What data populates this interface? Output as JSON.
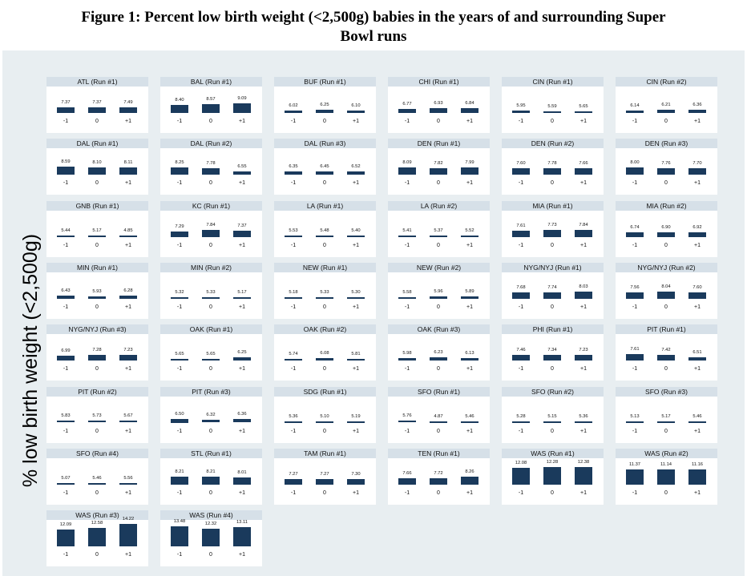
{
  "figure": {
    "title_line1": "Figure 1: Percent low birth weight (<2,500g) babies in the years of and surrounding Super",
    "title_line2": "Bowl runs",
    "ylabel": "% low birth weight (<2,500g)"
  },
  "colors": {
    "bar": "#1a3a5c",
    "strip": "#d6e0e8",
    "background": "#e8eef1"
  },
  "chart_data": {
    "type": "bar",
    "title": "Figure 1: Percent low birth weight (<2,500g) babies in the years of and surrounding Super Bowl runs",
    "ylabel": "% low birth weight (<2,500g)",
    "categories": [
      "-1",
      "0",
      "+1"
    ],
    "ylim": [
      5,
      15
    ],
    "layout": "small-multiples",
    "panels": [
      {
        "label": "ATL (Run #1)",
        "values": [
          7.37,
          7.37,
          7.49
        ]
      },
      {
        "label": "BAL (Run #1)",
        "values": [
          8.4,
          8.57,
          9.09
        ]
      },
      {
        "label": "BUF (Run #1)",
        "values": [
          6.02,
          6.25,
          6.1
        ]
      },
      {
        "label": "CHI (Run #1)",
        "values": [
          6.77,
          6.93,
          6.84
        ]
      },
      {
        "label": "CIN (Run #1)",
        "values": [
          5.95,
          5.59,
          5.65
        ]
      },
      {
        "label": "CIN (Run #2)",
        "values": [
          6.14,
          6.21,
          6.36
        ]
      },
      {
        "label": "DAL (Run #1)",
        "values": [
          8.59,
          8.1,
          8.11
        ]
      },
      {
        "label": "DAL (Run #2)",
        "values": [
          8.25,
          7.78,
          6.55
        ]
      },
      {
        "label": "DAL (Run #3)",
        "values": [
          6.35,
          6.45,
          6.52
        ]
      },
      {
        "label": "DEN (Run #1)",
        "values": [
          8.09,
          7.82,
          7.99
        ]
      },
      {
        "label": "DEN (Run #2)",
        "values": [
          7.6,
          7.78,
          7.66
        ]
      },
      {
        "label": "DEN (Run #3)",
        "values": [
          8.0,
          7.76,
          7.7
        ]
      },
      {
        "label": "GNB (Run #1)",
        "values": [
          5.44,
          5.17,
          4.85
        ]
      },
      {
        "label": "KC (Run #1)",
        "values": [
          7.29,
          7.84,
          7.37
        ]
      },
      {
        "label": "LA (Run #1)",
        "values": [
          5.53,
          5.48,
          5.4
        ]
      },
      {
        "label": "LA (Run #2)",
        "values": [
          5.41,
          5.37,
          5.52
        ]
      },
      {
        "label": "MIA (Run #1)",
        "values": [
          7.61,
          7.73,
          7.84
        ]
      },
      {
        "label": "MIA (Run #2)",
        "values": [
          6.74,
          6.9,
          6.92
        ]
      },
      {
        "label": "MIN (Run #1)",
        "values": [
          6.43,
          5.93,
          6.28
        ]
      },
      {
        "label": "MIN (Run #2)",
        "values": [
          5.32,
          5.33,
          5.17
        ]
      },
      {
        "label": "NEW (Run #1)",
        "values": [
          5.18,
          5.33,
          5.3
        ]
      },
      {
        "label": "NEW (Run #2)",
        "values": [
          5.58,
          5.96,
          5.89
        ]
      },
      {
        "label": "NYG/NYJ (Run #1)",
        "values": [
          7.68,
          7.74,
          8.03
        ]
      },
      {
        "label": "NYG/NYJ (Run #2)",
        "values": [
          7.56,
          8.04,
          7.6
        ]
      },
      {
        "label": "NYG/NYJ (Run #3)",
        "values": [
          6.99,
          7.28,
          7.23
        ]
      },
      {
        "label": "OAK (Run #1)",
        "values": [
          5.65,
          5.65,
          6.25
        ]
      },
      {
        "label": "OAK (Run #2)",
        "values": [
          5.74,
          6.08,
          5.81
        ]
      },
      {
        "label": "OAK (Run #3)",
        "values": [
          5.98,
          6.23,
          6.13
        ]
      },
      {
        "label": "PHI (Run #1)",
        "values": [
          7.46,
          7.34,
          7.23
        ]
      },
      {
        "label": "PIT (Run #1)",
        "values": [
          7.61,
          7.42,
          6.51
        ]
      },
      {
        "label": "PIT (Run #2)",
        "values": [
          5.83,
          5.73,
          5.67
        ]
      },
      {
        "label": "PIT (Run #3)",
        "values": [
          6.5,
          6.32,
          6.36
        ]
      },
      {
        "label": "SDG (Run #1)",
        "values": [
          5.36,
          5.1,
          5.19
        ]
      },
      {
        "label": "SFO (Run #1)",
        "values": [
          5.76,
          4.87,
          5.46
        ]
      },
      {
        "label": "SFO (Run #2)",
        "values": [
          5.28,
          5.15,
          5.36
        ]
      },
      {
        "label": "SFO (Run #3)",
        "values": [
          5.13,
          5.17,
          5.46
        ]
      },
      {
        "label": "SFO (Run #4)",
        "values": [
          5.07,
          5.46,
          5.56
        ]
      },
      {
        "label": "STL (Run #1)",
        "values": [
          8.21,
          8.21,
          8.01
        ]
      },
      {
        "label": "TAM (Run #1)",
        "values": [
          7.27,
          7.27,
          7.3
        ]
      },
      {
        "label": "TEN (Run #1)",
        "values": [
          7.66,
          7.72,
          8.26
        ]
      },
      {
        "label": "WAS (Run #1)",
        "values": [
          12.08,
          12.28,
          12.38
        ]
      },
      {
        "label": "WAS (Run #2)",
        "values": [
          11.37,
          11.14,
          11.16
        ]
      },
      {
        "label": "WAS (Run #3)",
        "values": [
          12.09,
          12.58,
          14.22
        ]
      },
      {
        "label": "WAS (Run #4)",
        "values": [
          13.48,
          12.32,
          13.11
        ]
      }
    ]
  }
}
